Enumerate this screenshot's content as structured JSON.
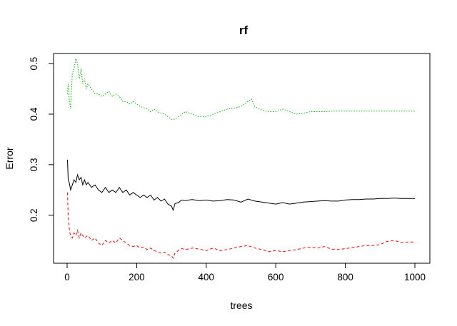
{
  "chart_data": {
    "type": "line",
    "title": "rf",
    "xlabel": "trees",
    "ylabel": "Error",
    "xlim": [
      0,
      1000
    ],
    "ylim": [
      0.105,
      0.52
    ],
    "xticks": [
      0,
      200,
      400,
      600,
      800,
      1000
    ],
    "yticks": [
      0.2,
      0.3,
      0.4,
      0.5
    ],
    "xtick_labels": [
      "0",
      "200",
      "400",
      "600",
      "800",
      "1000"
    ],
    "ytick_labels": [
      "0.2",
      "0.3",
      "0.4",
      "0.5"
    ],
    "grid": false,
    "legend": "none",
    "series": [
      {
        "color": "#000000",
        "dash": "",
        "points": [
          [
            1,
            0.31
          ],
          [
            3,
            0.27
          ],
          [
            6,
            0.265
          ],
          [
            10,
            0.25
          ],
          [
            15,
            0.26
          ],
          [
            20,
            0.27
          ],
          [
            25,
            0.265
          ],
          [
            30,
            0.28
          ],
          [
            35,
            0.27
          ],
          [
            40,
            0.275
          ],
          [
            45,
            0.26
          ],
          [
            50,
            0.27
          ],
          [
            55,
            0.26
          ],
          [
            60,
            0.265
          ],
          [
            70,
            0.255
          ],
          [
            80,
            0.26
          ],
          [
            90,
            0.25
          ],
          [
            100,
            0.245
          ],
          [
            110,
            0.255
          ],
          [
            120,
            0.245
          ],
          [
            130,
            0.25
          ],
          [
            140,
            0.245
          ],
          [
            150,
            0.255
          ],
          [
            160,
            0.245
          ],
          [
            170,
            0.25
          ],
          [
            180,
            0.24
          ],
          [
            190,
            0.245
          ],
          [
            200,
            0.24
          ],
          [
            210,
            0.235
          ],
          [
            220,
            0.24
          ],
          [
            230,
            0.235
          ],
          [
            240,
            0.24
          ],
          [
            250,
            0.23
          ],
          [
            260,
            0.235
          ],
          [
            270,
            0.228
          ],
          [
            280,
            0.232
          ],
          [
            290,
            0.222
          ],
          [
            300,
            0.218
          ],
          [
            305,
            0.21
          ],
          [
            310,
            0.223
          ],
          [
            320,
            0.225
          ],
          [
            330,
            0.23
          ],
          [
            340,
            0.229
          ],
          [
            350,
            0.23
          ],
          [
            360,
            0.231
          ],
          [
            380,
            0.229
          ],
          [
            400,
            0.23
          ],
          [
            420,
            0.228
          ],
          [
            440,
            0.229
          ],
          [
            460,
            0.231
          ],
          [
            480,
            0.23
          ],
          [
            500,
            0.226
          ],
          [
            520,
            0.232
          ],
          [
            540,
            0.228
          ],
          [
            560,
            0.226
          ],
          [
            580,
            0.224
          ],
          [
            600,
            0.222
          ],
          [
            620,
            0.225
          ],
          [
            640,
            0.222
          ],
          [
            660,
            0.224
          ],
          [
            680,
            0.226
          ],
          [
            700,
            0.227
          ],
          [
            720,
            0.228
          ],
          [
            740,
            0.229
          ],
          [
            760,
            0.228
          ],
          [
            780,
            0.228
          ],
          [
            800,
            0.23
          ],
          [
            820,
            0.231
          ],
          [
            840,
            0.231
          ],
          [
            860,
            0.232
          ],
          [
            880,
            0.232
          ],
          [
            900,
            0.233
          ],
          [
            920,
            0.233
          ],
          [
            940,
            0.234
          ],
          [
            960,
            0.233
          ],
          [
            980,
            0.233
          ],
          [
            1000,
            0.233
          ]
        ]
      },
      {
        "color": "#ff0000",
        "dash": "4,3",
        "points": [
          [
            1,
            0.245
          ],
          [
            3,
            0.2
          ],
          [
            5,
            0.18
          ],
          [
            8,
            0.165
          ],
          [
            10,
            0.16
          ],
          [
            15,
            0.155
          ],
          [
            20,
            0.165
          ],
          [
            25,
            0.16
          ],
          [
            30,
            0.17
          ],
          [
            35,
            0.155
          ],
          [
            40,
            0.165
          ],
          [
            50,
            0.155
          ],
          [
            60,
            0.16
          ],
          [
            70,
            0.15
          ],
          [
            80,
            0.155
          ],
          [
            90,
            0.145
          ],
          [
            100,
            0.14
          ],
          [
            110,
            0.15
          ],
          [
            120,
            0.145
          ],
          [
            130,
            0.15
          ],
          [
            140,
            0.145
          ],
          [
            150,
            0.155
          ],
          [
            160,
            0.15
          ],
          [
            170,
            0.145
          ],
          [
            180,
            0.14
          ],
          [
            190,
            0.138
          ],
          [
            200,
            0.14
          ],
          [
            210,
            0.135
          ],
          [
            220,
            0.137
          ],
          [
            230,
            0.132
          ],
          [
            240,
            0.135
          ],
          [
            250,
            0.13
          ],
          [
            260,
            0.128
          ],
          [
            270,
            0.125
          ],
          [
            280,
            0.127
          ],
          [
            290,
            0.122
          ],
          [
            300,
            0.12
          ],
          [
            305,
            0.115
          ],
          [
            310,
            0.125
          ],
          [
            320,
            0.13
          ],
          [
            330,
            0.134
          ],
          [
            340,
            0.132
          ],
          [
            360,
            0.135
          ],
          [
            380,
            0.133
          ],
          [
            400,
            0.13
          ],
          [
            420,
            0.135
          ],
          [
            440,
            0.13
          ],
          [
            460,
            0.132
          ],
          [
            480,
            0.135
          ],
          [
            500,
            0.138
          ],
          [
            520,
            0.14
          ],
          [
            540,
            0.135
          ],
          [
            560,
            0.132
          ],
          [
            580,
            0.128
          ],
          [
            600,
            0.13
          ],
          [
            620,
            0.128
          ],
          [
            640,
            0.13
          ],
          [
            660,
            0.132
          ],
          [
            680,
            0.135
          ],
          [
            700,
            0.137
          ],
          [
            720,
            0.135
          ],
          [
            740,
            0.138
          ],
          [
            760,
            0.133
          ],
          [
            780,
            0.132
          ],
          [
            800,
            0.134
          ],
          [
            820,
            0.136
          ],
          [
            840,
            0.138
          ],
          [
            860,
            0.14
          ],
          [
            880,
            0.14
          ],
          [
            900,
            0.142
          ],
          [
            920,
            0.148
          ],
          [
            940,
            0.15
          ],
          [
            960,
            0.146
          ],
          [
            980,
            0.147
          ],
          [
            1000,
            0.147
          ]
        ]
      },
      {
        "color": "#00c000",
        "dash": "1.5,2",
        "points": [
          [
            1,
            0.44
          ],
          [
            3,
            0.46
          ],
          [
            6,
            0.43
          ],
          [
            10,
            0.41
          ],
          [
            12,
            0.44
          ],
          [
            15,
            0.48
          ],
          [
            20,
            0.49
          ],
          [
            25,
            0.51
          ],
          [
            30,
            0.5
          ],
          [
            35,
            0.47
          ],
          [
            40,
            0.49
          ],
          [
            45,
            0.46
          ],
          [
            50,
            0.47
          ],
          [
            55,
            0.45
          ],
          [
            60,
            0.46
          ],
          [
            70,
            0.45
          ],
          [
            80,
            0.44
          ],
          [
            90,
            0.44
          ],
          [
            100,
            0.435
          ],
          [
            110,
            0.44
          ],
          [
            120,
            0.445
          ],
          [
            130,
            0.435
          ],
          [
            140,
            0.44
          ],
          [
            150,
            0.435
          ],
          [
            160,
            0.425
          ],
          [
            170,
            0.425
          ],
          [
            180,
            0.42
          ],
          [
            190,
            0.425
          ],
          [
            200,
            0.42
          ],
          [
            210,
            0.415
          ],
          [
            220,
            0.413
          ],
          [
            230,
            0.41
          ],
          [
            240,
            0.405
          ],
          [
            250,
            0.41
          ],
          [
            260,
            0.405
          ],
          [
            270,
            0.402
          ],
          [
            280,
            0.4
          ],
          [
            290,
            0.395
          ],
          [
            300,
            0.39
          ],
          [
            310,
            0.39
          ],
          [
            320,
            0.395
          ],
          [
            330,
            0.4
          ],
          [
            340,
            0.405
          ],
          [
            360,
            0.4
          ],
          [
            380,
            0.395
          ],
          [
            400,
            0.395
          ],
          [
            420,
            0.4
          ],
          [
            440,
            0.405
          ],
          [
            460,
            0.41
          ],
          [
            480,
            0.412
          ],
          [
            500,
            0.415
          ],
          [
            510,
            0.42
          ],
          [
            520,
            0.425
          ],
          [
            530,
            0.43
          ],
          [
            540,
            0.415
          ],
          [
            560,
            0.408
          ],
          [
            580,
            0.405
          ],
          [
            600,
            0.405
          ],
          [
            620,
            0.41
          ],
          [
            640,
            0.405
          ],
          [
            660,
            0.4
          ],
          [
            680,
            0.402
          ],
          [
            700,
            0.405
          ],
          [
            720,
            0.405
          ],
          [
            740,
            0.405
          ],
          [
            760,
            0.406
          ],
          [
            780,
            0.406
          ],
          [
            800,
            0.406
          ],
          [
            840,
            0.406
          ],
          [
            880,
            0.406
          ],
          [
            920,
            0.406
          ],
          [
            960,
            0.406
          ],
          [
            1000,
            0.406
          ]
        ]
      }
    ]
  }
}
